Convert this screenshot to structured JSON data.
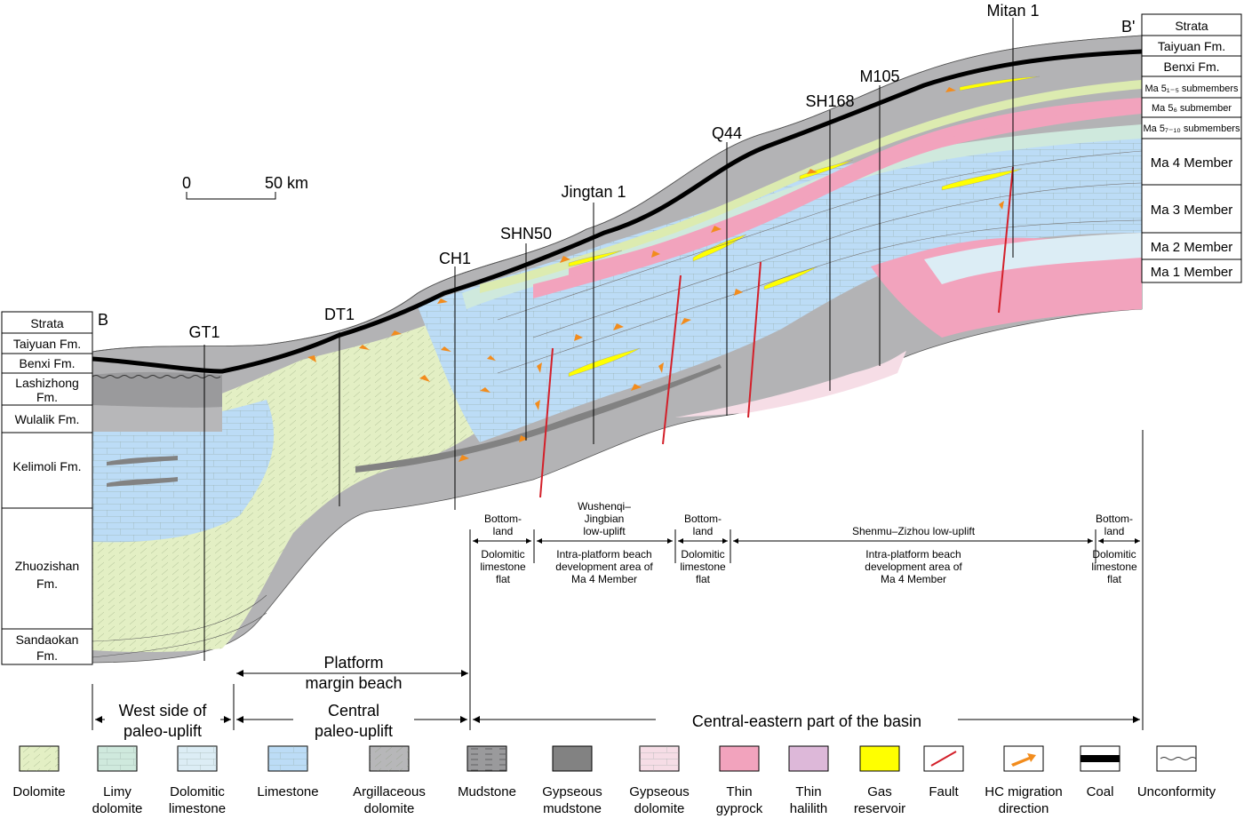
{
  "left_column": {
    "header": "Strata",
    "end_label": "B",
    "units": [
      {
        "lines": [
          "Taiyuan Fm."
        ]
      },
      {
        "lines": [
          "Benxi Fm."
        ]
      },
      {
        "lines": [
          "Lashizhong",
          "Fm."
        ]
      },
      {
        "lines": [
          "Wulalik Fm."
        ]
      },
      {
        "lines": [
          "Kelimoli Fm."
        ]
      },
      {
        "lines": [
          "Zhuozishan",
          "Fm."
        ]
      },
      {
        "lines": [
          "Sandaokan",
          "Fm."
        ]
      }
    ]
  },
  "right_column": {
    "header": "Strata",
    "end_label": "B'",
    "units": [
      {
        "text": "Taiyuan Fm."
      },
      {
        "text": "Benxi Fm."
      },
      {
        "text": "Ma 5₁₋₅ submembers"
      },
      {
        "text": "Ma 5₆ submember"
      },
      {
        "text": "Ma 5₇₋₁₀ submembers"
      },
      {
        "text": "Ma 4 Member"
      },
      {
        "text": "Ma 3 Member"
      },
      {
        "text": "Ma 2 Member"
      },
      {
        "text": "Ma 1 Member"
      }
    ]
  },
  "scale_bar": {
    "start": "0",
    "end": "50 km"
  },
  "wells": [
    "GT1",
    "DT1",
    "CH1",
    "SHN50",
    "Jingtan 1",
    "Q44",
    "SH168",
    "M105",
    "Mitan 1"
  ],
  "facies": {
    "platform_margin": [
      "Platform",
      "margin beach"
    ],
    "bottom_land_1": [
      "Bottom-",
      "land"
    ],
    "bottom_land_1_desc": [
      "Dolomitic",
      "limestone",
      "flat"
    ],
    "wushenqi": [
      "Wushenqi–",
      "Jingbian",
      "low-uplift"
    ],
    "intra_1": [
      "Intra-platform beach",
      "development area of",
      "Ma 4 Member"
    ],
    "bottom_land_2": [
      "Bottom-",
      "land"
    ],
    "bottom_land_2_desc": [
      "Dolomitic",
      "limestone",
      "flat"
    ],
    "shenmu": "Shenmu–Zizhou low-uplift",
    "intra_2": [
      "Intra-platform beach",
      "development area of",
      "Ma 4 Member"
    ],
    "bottom_land_3": [
      "Bottom-",
      "land"
    ],
    "bottom_land_3_desc": [
      "Dolomitic",
      "limestone",
      "flat"
    ]
  },
  "regions": {
    "west": [
      "West side of",
      "paleo-uplift"
    ],
    "central": [
      "Central",
      "paleo-uplift"
    ],
    "east": "Central-eastern part of the basin"
  },
  "legend": [
    {
      "lines": [
        "Dolomite"
      ],
      "icon": "dolomite-swatch",
      "color": "#e3efc4"
    },
    {
      "lines": [
        "Limy",
        "dolomite"
      ],
      "icon": "limy-dolomite-swatch",
      "color": "#cfe9dd"
    },
    {
      "lines": [
        "Dolomitic",
        "limestone"
      ],
      "icon": "dolomitic-limestone-swatch",
      "color": "#dcedf5"
    },
    {
      "lines": [
        "Limestone"
      ],
      "icon": "limestone-swatch",
      "color": "#bcdcf6"
    },
    {
      "lines": [
        "Argillaceous",
        "dolomite"
      ],
      "icon": "argillaceous-dolomite-swatch",
      "color": "#b7b7b9"
    },
    {
      "lines": [
        "Mudstone"
      ],
      "icon": "mudstone-swatch",
      "color": "#9a9a9c"
    },
    {
      "lines": [
        "Gypseous",
        "mudstone"
      ],
      "icon": "gypseous-mudstone-swatch",
      "color": "#828282"
    },
    {
      "lines": [
        "Gypseous",
        "dolomite"
      ],
      "icon": "gypseous-dolomite-swatch",
      "color": "#f6dde6"
    },
    {
      "lines": [
        "Thin",
        "gyprock"
      ],
      "icon": "thin-gyprock-swatch",
      "color": "#f2a3bd"
    },
    {
      "lines": [
        "Thin",
        "halilith"
      ],
      "icon": "thin-halilith-swatch",
      "color": "#ddb8d9"
    },
    {
      "lines": [
        "Gas",
        "reservoir"
      ],
      "icon": "gas-reservoir-swatch",
      "color": "#ffff00"
    },
    {
      "lines": [
        "Fault"
      ],
      "icon": "fault-symbol",
      "color": "#d3202a"
    },
    {
      "lines": [
        "HC migration",
        "direction"
      ],
      "icon": "migration-arrow-symbol",
      "color": "#f28c1d"
    },
    {
      "lines": [
        "Coal"
      ],
      "icon": "coal-symbol",
      "color": "#000000"
    },
    {
      "lines": [
        "Unconformity"
      ],
      "icon": "unconformity-symbol",
      "color": "#333333"
    }
  ]
}
